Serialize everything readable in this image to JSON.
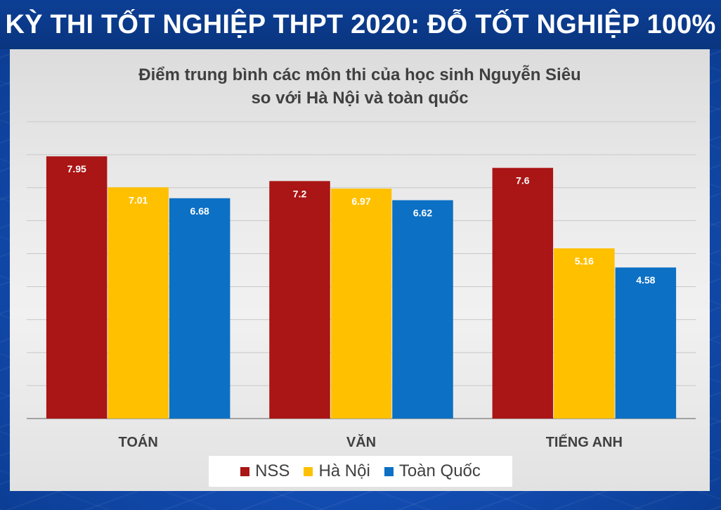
{
  "header": {
    "title": "KỲ THI TỐT NGHIỆP THPT 2020: ĐỖ TỐT NGHIỆP 100%"
  },
  "chart_data": {
    "type": "bar",
    "title_lines": [
      "Điểm trung bình các môn thi của học sinh Nguyễn Siêu",
      "so với Hà Nội và toàn quốc"
    ],
    "categories": [
      "TOÁN",
      "VĂN",
      "TIẾNG ANH"
    ],
    "series": [
      {
        "name": "NSS",
        "color": "#aa1515",
        "values": [
          7.95,
          7.2,
          7.6
        ],
        "labels": [
          "7.95",
          "7.2",
          "7.6"
        ]
      },
      {
        "name": "Hà Nội",
        "color": "#ffc000",
        "values": [
          7.01,
          6.97,
          5.16
        ],
        "labels": [
          "7.01",
          "6.97",
          "5.16"
        ]
      },
      {
        "name": "Toàn Quốc",
        "color": "#0c70c4",
        "values": [
          6.68,
          6.62,
          4.58
        ],
        "labels": [
          "6.68",
          "6.62",
          "4.58"
        ]
      }
    ],
    "ylim": [
      0,
      9
    ],
    "grid": true,
    "legend_position": "bottom"
  }
}
